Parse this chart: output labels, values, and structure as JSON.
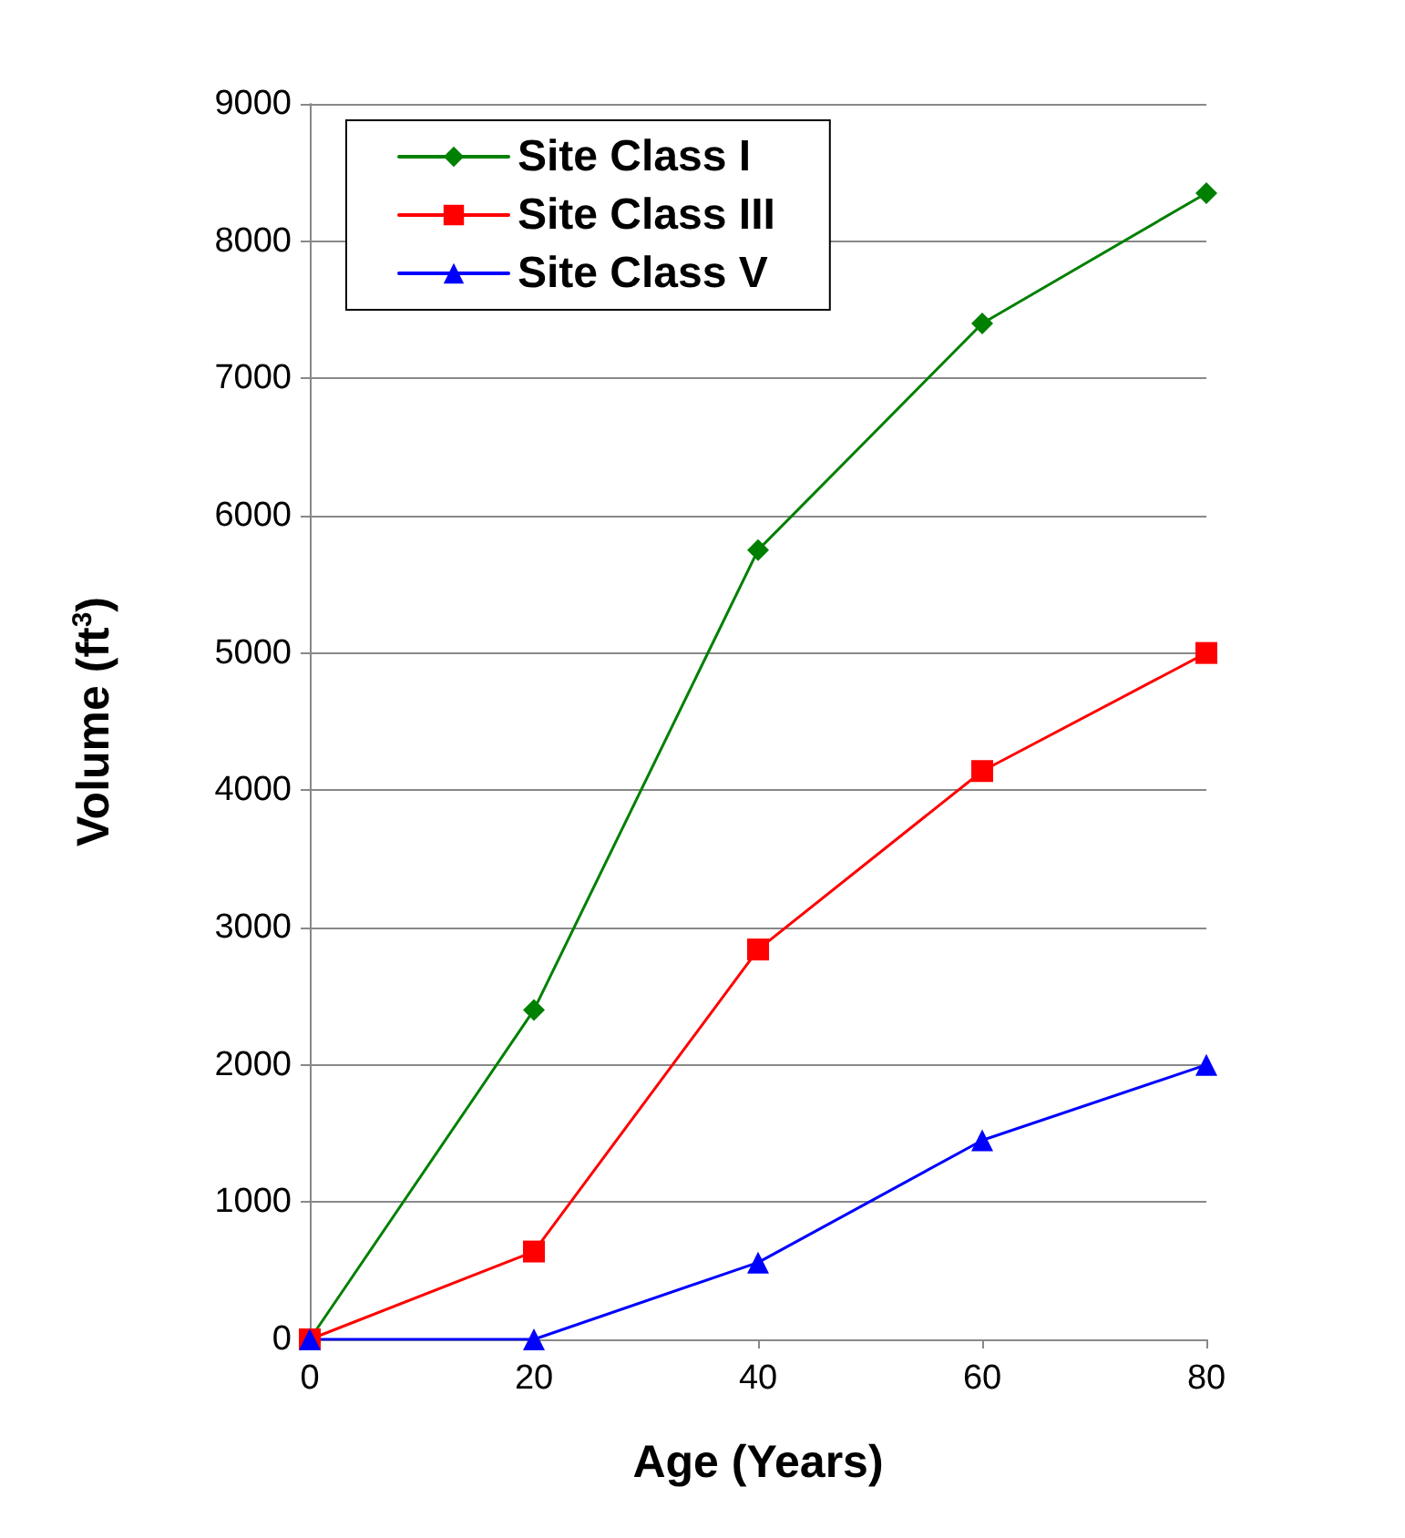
{
  "chart_data": {
    "type": "line",
    "xlabel": "Age (Years)",
    "ylabel": "Volume (ft$^{3}$)",
    "x": [
      0,
      20,
      40,
      60,
      80
    ],
    "series": [
      {
        "name": "Site Class I",
        "color": "#008000",
        "marker": "diamond",
        "values": [
          0,
          2400,
          5750,
          7400,
          8350
        ]
      },
      {
        "name": "Site Class III",
        "color": "#ff0000",
        "marker": "square",
        "values": [
          0,
          640,
          2840,
          4140,
          5000
        ]
      },
      {
        "name": "Site Class V",
        "color": "#0000ff",
        "marker": "triangle",
        "values": [
          0,
          0,
          560,
          1450,
          2000
        ]
      }
    ],
    "xlim": [
      0,
      80
    ],
    "xticks": [
      0,
      20,
      40,
      60,
      80
    ],
    "ylim": [
      0,
      9000
    ],
    "yticks": [
      0,
      1000,
      2000,
      3000,
      4000,
      5000,
      6000,
      7000,
      8000,
      9000
    ],
    "grid": "y",
    "legend": "top left",
    "line_style": "solid"
  }
}
